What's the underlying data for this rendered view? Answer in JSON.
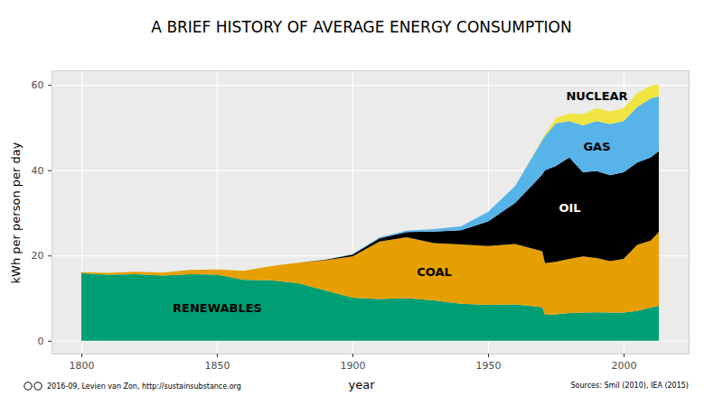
{
  "chart_data": {
    "type": "area",
    "title": "A BRIEF HISTORY OF AVERAGE ENERGY CONSUMPTION",
    "x_label": "year",
    "y_label": "kWh per person per day",
    "stacked": true,
    "grid": true,
    "x": [
      1800,
      1810,
      1820,
      1830,
      1840,
      1850,
      1860,
      1870,
      1880,
      1890,
      1900,
      1910,
      1920,
      1930,
      1940,
      1950,
      1960,
      1970,
      1971,
      1975,
      1980,
      1985,
      1990,
      1995,
      2000,
      2005,
      2010,
      2013
    ],
    "series": [
      {
        "name": "RENEWABLES",
        "color": "#009E73",
        "values": [
          15.8,
          15.5,
          15.6,
          15.3,
          15.6,
          15.5,
          14.3,
          14.2,
          13.5,
          11.8,
          10.1,
          9.8,
          10.0,
          9.5,
          8.7,
          8.4,
          8.5,
          7.9,
          6.1,
          6.2,
          6.5,
          6.6,
          6.7,
          6.6,
          6.6,
          7.0,
          7.8,
          8.2
        ]
      },
      {
        "name": "COAL",
        "color": "#E69F00",
        "values": [
          0.3,
          0.4,
          0.6,
          0.7,
          1.0,
          1.2,
          2.1,
          3.3,
          4.8,
          7.1,
          9.7,
          13.5,
          14.3,
          13.4,
          13.9,
          13.8,
          14.2,
          13.1,
          12.1,
          12.3,
          12.7,
          13.2,
          12.7,
          12.1,
          12.6,
          15.5,
          15.7,
          17.3
        ]
      },
      {
        "name": "OIL",
        "color": "#000000",
        "values": [
          0,
          0,
          0,
          0,
          0,
          0,
          0,
          0,
          0,
          0.1,
          0.4,
          0.7,
          1.2,
          2.7,
          3.3,
          5.8,
          9.6,
          18.0,
          21.8,
          22.5,
          23.8,
          19.7,
          20.4,
          20.1,
          20.3,
          19.3,
          19.5,
          19.0
        ]
      },
      {
        "name": "GAS",
        "color": "#56B4E9",
        "values": [
          0,
          0,
          0,
          0,
          0,
          0,
          0,
          0,
          0,
          0,
          0.1,
          0.3,
          0.3,
          0.6,
          0.9,
          2.2,
          4.0,
          8.0,
          8.0,
          10.0,
          8.5,
          11.0,
          11.7,
          12.0,
          12.0,
          13.0,
          13.8,
          12.8
        ]
      },
      {
        "name": "NUCLEAR",
        "color": "#F0E442",
        "values": [
          0,
          0,
          0,
          0,
          0,
          0,
          0,
          0,
          0,
          0,
          0,
          0,
          0,
          0,
          0,
          0,
          0,
          0.3,
          0.4,
          1.2,
          1.8,
          2.6,
          3.0,
          3.0,
          3.0,
          3.2,
          3.0,
          2.8
        ]
      }
    ],
    "xlim": [
      1789,
      2024
    ],
    "ylim": [
      -3,
      63.4
    ],
    "xticks": [
      1800,
      1850,
      1900,
      1950,
      2000
    ],
    "yticks": [
      0,
      20,
      40,
      60
    ],
    "annotations": [
      "2016-09, Levien van Zon, http://sustainsubstance.org",
      "Sources: Smil (2010), IEA (2015)"
    ]
  }
}
